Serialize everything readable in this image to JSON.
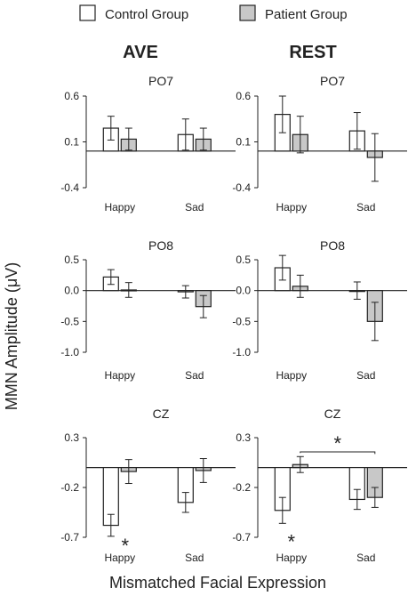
{
  "legend": {
    "items": [
      {
        "label": "Control Group",
        "fill": "#ffffff"
      },
      {
        "label": "Patient Group",
        "fill": "#c8c8c8"
      }
    ]
  },
  "columns": [
    "AVE",
    "REST"
  ],
  "ylabel": "MMN Amplitude (μV)",
  "xlabel": "Mismatched Facial Expression",
  "colors": {
    "control": "#ffffff",
    "patient": "#c8c8c8",
    "stroke": "#222222"
  },
  "chart_data": [
    {
      "type": "bar",
      "column": "AVE",
      "title": "PO7",
      "categories": [
        "Happy",
        "Sad"
      ],
      "ylim": [
        -0.4,
        0.6
      ],
      "yticks": [
        0.6,
        0.1,
        -0.4
      ],
      "yticklabels": [
        "0.6",
        "0.1",
        "-0.4"
      ],
      "series": [
        {
          "name": "Control Group",
          "values": [
            0.25,
            0.18
          ],
          "errors": [
            0.13,
            0.17
          ]
        },
        {
          "name": "Patient Group",
          "values": [
            0.13,
            0.13
          ],
          "errors": [
            0.12,
            0.12
          ]
        }
      ]
    },
    {
      "type": "bar",
      "column": "REST",
      "title": "PO7",
      "categories": [
        "Happy",
        "Sad"
      ],
      "ylim": [
        -0.4,
        0.6
      ],
      "yticks": [
        0.6,
        0.1,
        -0.4
      ],
      "yticklabels": [
        "0.6",
        "0.1",
        "-0.4"
      ],
      "series": [
        {
          "name": "Control Group",
          "values": [
            0.4,
            0.22
          ],
          "errors": [
            0.2,
            0.2
          ]
        },
        {
          "name": "Patient Group",
          "values": [
            0.18,
            -0.07
          ],
          "errors": [
            0.2,
            0.26
          ]
        }
      ]
    },
    {
      "type": "bar",
      "column": "AVE",
      "title": "PO8",
      "categories": [
        "Happy",
        "Sad"
      ],
      "ylim": [
        -1.0,
        0.5
      ],
      "yticks": [
        0.5,
        0.0,
        -0.5,
        -1.0
      ],
      "yticklabels": [
        "0.5",
        "0.0",
        "-0.5",
        "-1.0"
      ],
      "series": [
        {
          "name": "Control Group",
          "values": [
            0.22,
            -0.02
          ],
          "errors": [
            0.12,
            0.1
          ]
        },
        {
          "name": "Patient Group",
          "values": [
            0.01,
            -0.26
          ],
          "errors": [
            0.12,
            0.18
          ]
        }
      ]
    },
    {
      "type": "bar",
      "column": "REST",
      "title": "PO8",
      "categories": [
        "Happy",
        "Sad"
      ],
      "ylim": [
        -1.0,
        0.5
      ],
      "yticks": [
        0.5,
        0.0,
        -0.5,
        -1.0
      ],
      "yticklabels": [
        "0.5",
        "0.0",
        "-0.5",
        "-1.0"
      ],
      "series": [
        {
          "name": "Control Group",
          "values": [
            0.37,
            0.0
          ],
          "errors": [
            0.2,
            0.14
          ]
        },
        {
          "name": "Patient Group",
          "values": [
            0.07,
            -0.5
          ],
          "errors": [
            0.18,
            0.31
          ]
        }
      ]
    },
    {
      "type": "bar",
      "column": "AVE",
      "title": "CZ",
      "categories": [
        "Happy",
        "Sad"
      ],
      "ylim": [
        -0.7,
        0.3
      ],
      "yticks": [
        0.3,
        -0.2,
        -0.7
      ],
      "yticklabels": [
        "0.3",
        "-0.2",
        "-0.7"
      ],
      "annotations": [
        {
          "text": "*",
          "category": "Happy"
        }
      ],
      "series": [
        {
          "name": "Control Group",
          "values": [
            -0.58,
            -0.35
          ],
          "errors": [
            0.11,
            0.1
          ]
        },
        {
          "name": "Patient Group",
          "values": [
            -0.04,
            -0.03
          ],
          "errors": [
            0.12,
            0.12
          ]
        }
      ]
    },
    {
      "type": "bar",
      "column": "REST",
      "title": "CZ",
      "categories": [
        "Happy",
        "Sad"
      ],
      "ylim": [
        -0.7,
        0.3
      ],
      "yticks": [
        0.3,
        -0.2,
        -0.7
      ],
      "yticklabels": [
        "0.3",
        "-0.2",
        "-0.7"
      ],
      "annotations": [
        {
          "text": "*",
          "category": "Happy"
        },
        {
          "text": "*",
          "bracket": "Happy-Patient to Sad-Patient"
        }
      ],
      "series": [
        {
          "name": "Control Group",
          "values": [
            -0.43,
            -0.32
          ],
          "errors": [
            0.13,
            0.1
          ]
        },
        {
          "name": "Patient Group",
          "values": [
            0.03,
            -0.3
          ],
          "errors": [
            0.08,
            0.1
          ]
        }
      ]
    }
  ]
}
